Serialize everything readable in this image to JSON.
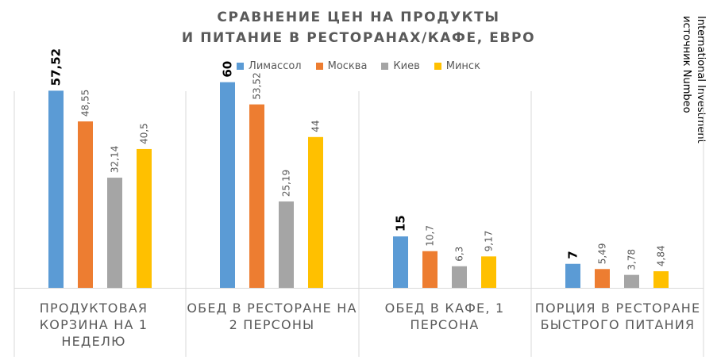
{
  "chart_data": {
    "type": "bar",
    "title_lines": [
      "СРАВНЕНИЕ ЦЕН НА ПРОДУКТЫ",
      "И ПИТАНИЕ В РЕСТОРАНАХ/КАФЕ, ЕВРО"
    ],
    "source_lines": [
      "International Investment",
      "источник Numbeo"
    ],
    "categories": [
      "ПРОДУКТОВАЯ КОРЗИНА НА 1 НЕДЕЛЮ",
      "ОБЕД В РЕСТОРАНЕ НА 2 ПЕРСОНЫ",
      "ОБЕД В КАФЕ, 1 ПЕРСОНА",
      "ПОРЦИЯ В РЕСТОРАНЕ БЫСТРОГО ПИТАНИЯ"
    ],
    "series": [
      {
        "name": "Лимассол",
        "color": "#5B9BD5",
        "values": [
          57.52,
          60,
          15,
          7
        ],
        "labels": [
          "57,52",
          "60",
          "15",
          "7"
        ],
        "label_emphasis": "bold"
      },
      {
        "name": "Москва",
        "color": "#ED7D31",
        "values": [
          48.55,
          53.52,
          10.7,
          5.49
        ],
        "labels": [
          "48,55",
          "53,52",
          "10,7",
          "5,49"
        ]
      },
      {
        "name": "Киев",
        "color": "#A5A5A5",
        "values": [
          32.14,
          25.19,
          6.3,
          3.78
        ],
        "labels": [
          "32,14",
          "25,19",
          "6,3",
          "3,78"
        ]
      },
      {
        "name": "Минск",
        "color": "#FFC000",
        "values": [
          40.5,
          44,
          9.17,
          4.84
        ],
        "labels": [
          "40,5",
          "44",
          "9,17",
          "4,84"
        ]
      }
    ],
    "ylim": [
      0,
      62
    ],
    "legend_position": "top",
    "grid": false
  }
}
